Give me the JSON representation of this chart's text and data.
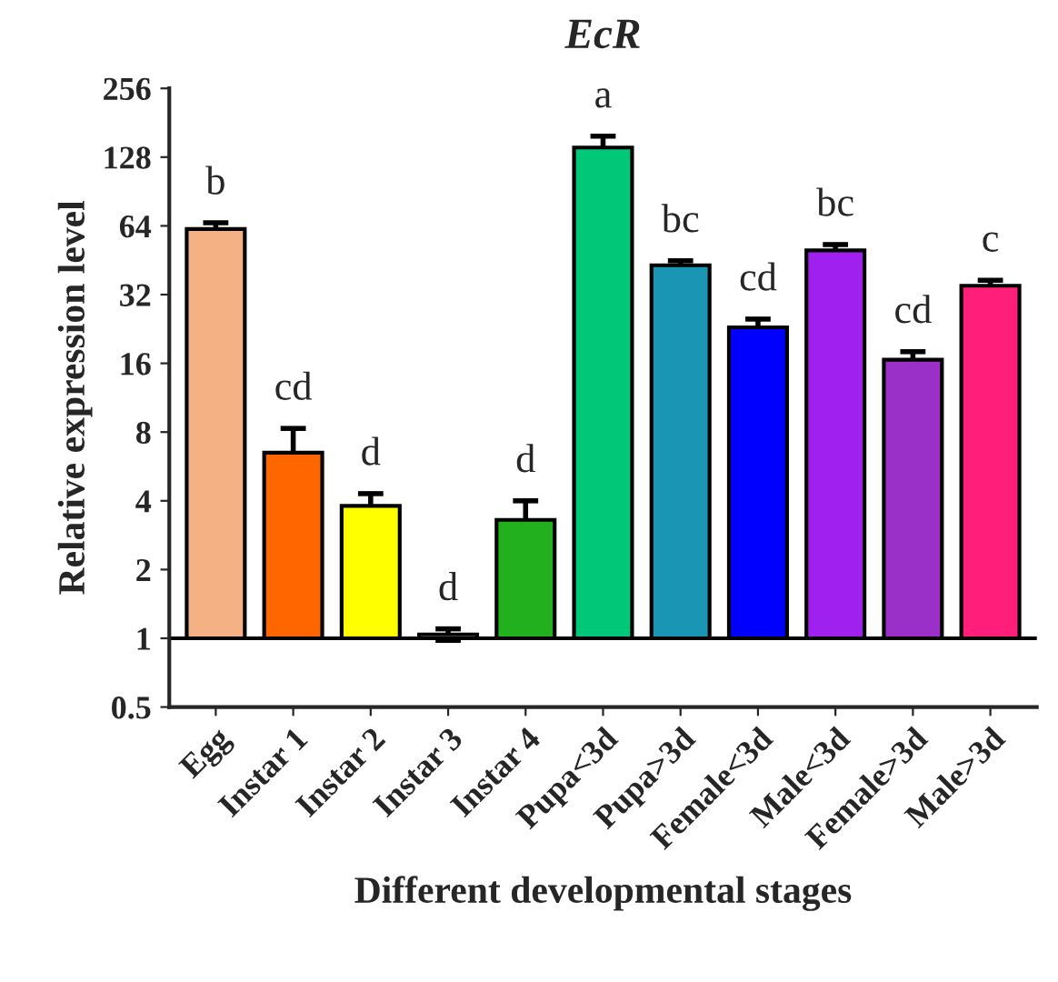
{
  "chart_data": {
    "type": "bar",
    "title": "EcR",
    "xlabel": "Different developmental stages",
    "ylabel": "Relative expression level",
    "categories": [
      "Egg",
      "Instar 1",
      "Instar 2",
      "Instar 3",
      "Instar 4",
      "Pupa<3d",
      "Pupa>3d",
      "Female<3d",
      "Male<3d",
      "Female>3d",
      "Male>3d"
    ],
    "base": [
      1,
      1,
      1,
      1,
      1,
      1,
      1,
      1,
      1,
      1,
      1
    ],
    "values": [
      61,
      5.5,
      2.8,
      0.04,
      2.3,
      140,
      42,
      22,
      49,
      15.6,
      34
    ],
    "errors": [
      4,
      1.8,
      0.5,
      0.06,
      0.7,
      17,
      2,
      2,
      3,
      1.4,
      2
    ],
    "colors": [
      "#f4b183",
      "#ff6600",
      "#ffff00",
      "#ffffe0",
      "#22b01e",
      "#00c878",
      "#1a96b4",
      "#0000ff",
      "#a020f0",
      "#9b30c8",
      "#ff1f7a"
    ],
    "log": true,
    "ylim": [
      0.5,
      256
    ],
    "yticks": [
      0.5,
      1,
      2,
      4,
      8,
      16,
      32,
      64,
      128,
      256
    ],
    "ref_lines": [
      {
        "axis": "y",
        "value": 1
      }
    ],
    "grid": false,
    "legend": false,
    "annotations": [
      {
        "text": "b",
        "x": "Egg",
        "y": 66
      },
      {
        "text": "cd",
        "x": "Instar 1",
        "y": 8.3
      },
      {
        "text": "d",
        "x": "Instar 2",
        "y": 4.3
      },
      {
        "text": "d",
        "x": "Instar 3",
        "y": 1.1
      },
      {
        "text": "d",
        "x": "Instar 4",
        "y": 4.0
      },
      {
        "text": "a",
        "x": "Pupa<3d",
        "y": 158
      },
      {
        "text": "bc",
        "x": "Pupa>3d",
        "y": 45
      },
      {
        "text": "cd",
        "x": "Female<3d",
        "y": 25
      },
      {
        "text": "bc",
        "x": "Male<3d",
        "y": 53
      },
      {
        "text": "cd",
        "x": "Female>3d",
        "y": 18
      },
      {
        "text": "c",
        "x": "Male>3d",
        "y": 37
      }
    ]
  }
}
